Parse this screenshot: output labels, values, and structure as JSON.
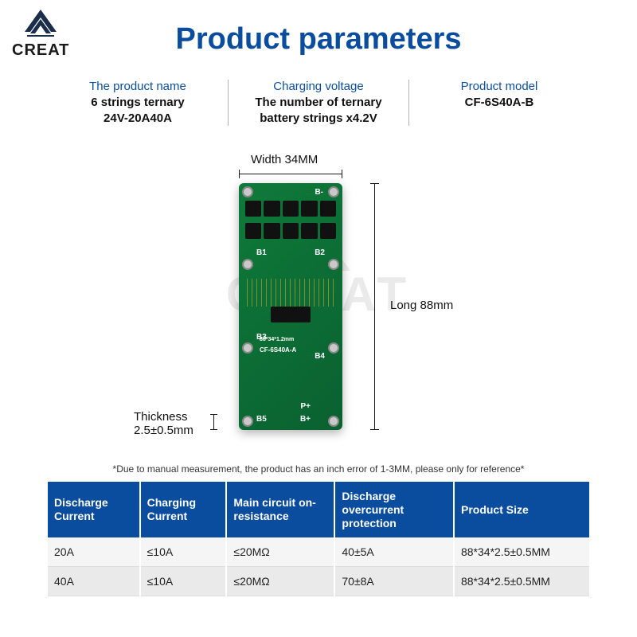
{
  "brand": {
    "name": "CREAT"
  },
  "title": "Product parameters",
  "colors": {
    "brand_blue": "#0a4d9e",
    "pcb_green_a": "#0e7a3a",
    "pcb_green_b": "#0a6130",
    "text_dark": "#111111",
    "table_header_bg": "#0a4d9e",
    "table_row_odd": "#f5f5f5",
    "table_row_even": "#eaeaea"
  },
  "specs": [
    {
      "label": "The product name",
      "value_l1": "6 strings ternary",
      "value_l2": "24V-20A40A"
    },
    {
      "label": "Charging voltage",
      "value_l1": "The number of ternary",
      "value_l2": "battery strings x4.2V"
    },
    {
      "label": "Product model",
      "value_l1": "CF-6S40A-B",
      "value_l2": ""
    }
  ],
  "dimensions": {
    "width_label": "Width 34MM",
    "length_label": "Long 88mm",
    "thickness_label": "Thickness",
    "thickness_value": "2.5±0.5mm"
  },
  "pcb_silk": {
    "b_neg": "B-",
    "b1": "B1",
    "b2": "B2",
    "b3": "B3",
    "b4": "B4",
    "b5": "B5",
    "b_pos": "B+",
    "p_pos": "P+",
    "dim_text": "88*34*1.2mm",
    "model_text": "CF-6S40A-A"
  },
  "watermark": "CREAT",
  "note": "*Due to manual measurement, the product has an inch error of 1-3MM, please only for reference*",
  "table": {
    "columns": [
      "Discharge Current",
      "Charging Current",
      "Main circuit on-resistance",
      "Discharge overcurrent protection",
      "Product Size"
    ],
    "rows": [
      [
        "20A",
        "≤10A",
        "≤20MΩ",
        "40±5A",
        "88*34*2.5±0.5MM"
      ],
      [
        "40A",
        "≤10A",
        "≤20MΩ",
        "70±8A",
        "88*34*2.5±0.5MM"
      ]
    ],
    "col_widths_pct": [
      17,
      16,
      20,
      22,
      25
    ]
  }
}
